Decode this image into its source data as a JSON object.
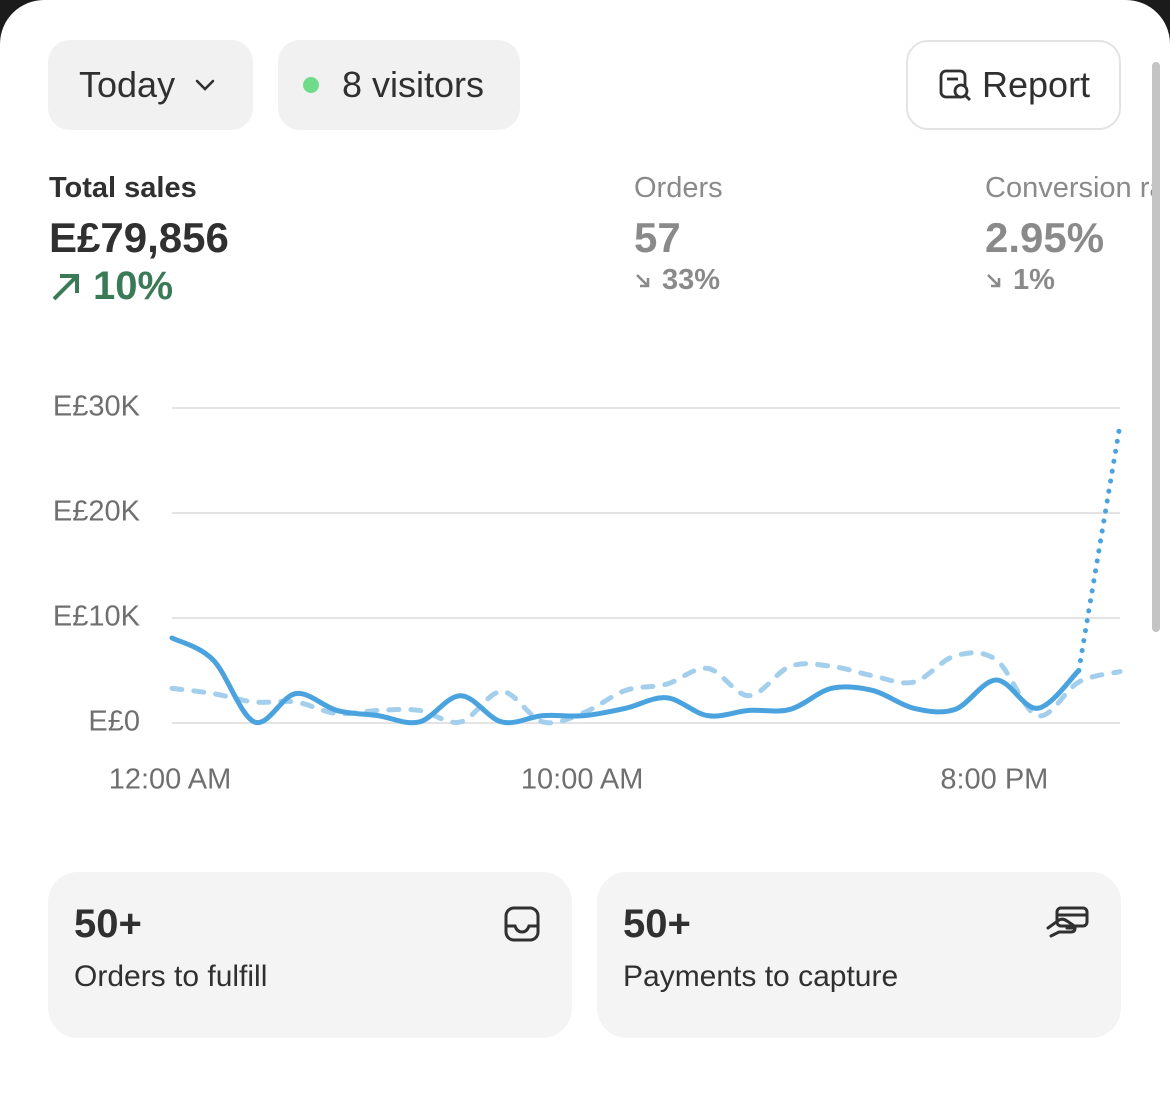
{
  "toolbar": {
    "date": "Today",
    "visitors": "8 visitors",
    "report": "Report"
  },
  "metrics": [
    {
      "label": "Total sales",
      "value": "E£79,856",
      "change": "10%"
    },
    {
      "label": "Orders",
      "value": "57",
      "change": "33%"
    },
    {
      "label": "Conversion rate",
      "value": "2.95%",
      "change": "1%"
    }
  ],
  "chart_data": {
    "type": "line",
    "x": [
      0,
      1,
      2,
      3,
      4,
      5,
      6,
      7,
      8,
      9,
      10,
      11,
      12,
      13,
      14,
      15,
      16,
      17,
      18,
      19,
      20,
      21,
      22,
      23
    ],
    "xlim": [
      0,
      23
    ],
    "xticks": [
      {
        "value": 0,
        "label": "12:00 AM"
      },
      {
        "value": 10,
        "label": "10:00 AM"
      },
      {
        "value": 20,
        "label": "8:00 PM"
      }
    ],
    "ylim": [
      0,
      30000
    ],
    "yticks": [
      {
        "value": 0,
        "label": "E£0"
      },
      {
        "value": 10000,
        "label": "E£10K"
      },
      {
        "value": 20000,
        "label": "E£20K"
      },
      {
        "value": 30000,
        "label": "E£30K"
      }
    ],
    "grid": true,
    "series": [
      {
        "color": "#4aa3df",
        "values": [
          8100,
          6000,
          100,
          2800,
          1200,
          700,
          100,
          2600,
          100,
          700,
          700,
          1400,
          2400,
          700,
          1200,
          1300,
          3300,
          3100,
          1400,
          1300,
          4100,
          1400,
          5000,
          28400
        ]
      },
      {
        "color": "#a4cfec",
        "values": [
          3300,
          2800,
          2000,
          2000,
          900,
          1200,
          1200,
          100,
          3000,
          100,
          1000,
          3100,
          3700,
          5200,
          2600,
          5400,
          5400,
          4500,
          3900,
          6400,
          6000,
          700,
          3900,
          4900
        ]
      }
    ]
  },
  "cards": [
    {
      "count": "50+",
      "label": "Orders to fulfill"
    },
    {
      "count": "50+",
      "label": "Payments to capture"
    }
  ]
}
